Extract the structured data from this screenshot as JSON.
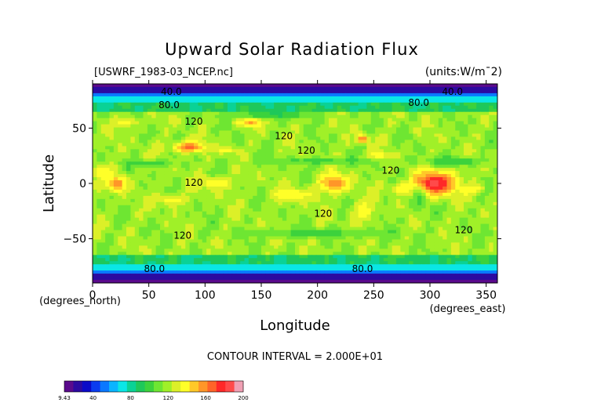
{
  "chart_data": {
    "type": "heatmap",
    "title": "Upward Solar Radiation Flux",
    "file_label": "[USWRF_1983-03_NCEP.nc]",
    "units_label": "(units:W/m¯2)",
    "xlabel": "Longitude",
    "ylabel": "Latitude",
    "x_unit_label": "(degrees_east)",
    "y_unit_label": "(degrees_north)",
    "xlim": [
      0,
      360
    ],
    "ylim": [
      -90,
      90
    ],
    "x_ticks": [
      0,
      50,
      100,
      150,
      200,
      250,
      300,
      350
    ],
    "y_ticks": [
      50,
      0,
      -50
    ],
    "contour_interval_label": "CONTOUR INTERVAL = 2.000E+01",
    "contour_labels": [
      {
        "text": "40.0",
        "lon": 70,
        "lat": 80
      },
      {
        "text": "80.0",
        "lon": 68,
        "lat": 68
      },
      {
        "text": "40.0",
        "lon": 320,
        "lat": 80
      },
      {
        "text": "80.0",
        "lon": 290,
        "lat": 70
      },
      {
        "text": "120",
        "lon": 90,
        "lat": 53
      },
      {
        "text": "120",
        "lon": 170,
        "lat": 40
      },
      {
        "text": "120",
        "lon": 190,
        "lat": 27
      },
      {
        "text": "120",
        "lon": 265,
        "lat": 9
      },
      {
        "text": "120",
        "lon": 90,
        "lat": -2
      },
      {
        "text": "120",
        "lon": 205,
        "lat": -30
      },
      {
        "text": "120",
        "lon": 80,
        "lat": -50
      },
      {
        "text": "120",
        "lon": 330,
        "lat": -45
      },
      {
        "text": "80.0",
        "lon": 55,
        "lat": -80
      },
      {
        "text": "80.0",
        "lon": 240,
        "lat": -80
      }
    ],
    "colorbar": {
      "min": 9.43,
      "max": 200,
      "tick_labels": [
        "9.43",
        "40",
        "80",
        "120",
        "160",
        "200"
      ],
      "tick_values": [
        9.43,
        40,
        80,
        120,
        160,
        200
      ],
      "colors": [
        "#5a0a8c",
        "#2c0aa0",
        "#0a0ac8",
        "#0a3cf0",
        "#0a78ff",
        "#0ab4ff",
        "#0ae6e6",
        "#0ad296",
        "#1ec85a",
        "#3cd23c",
        "#6ee632",
        "#a0f028",
        "#dcf028",
        "#ffff28",
        "#ffc828",
        "#ff9628",
        "#ff6428",
        "#ff2828",
        "#ff4a4a",
        "#f0a0b4"
      ]
    },
    "features": [
      {
        "kind": "hot",
        "lon": 305,
        "lat": 0,
        "rlon": 18,
        "rlat": 11,
        "value": 185
      },
      {
        "kind": "hot",
        "lon": 215,
        "lat": 0,
        "rlon": 14,
        "rlat": 8,
        "value": 160
      },
      {
        "kind": "hot",
        "lon": 22,
        "lat": 0,
        "rlon": 9,
        "rlat": 7,
        "value": 160
      },
      {
        "kind": "hot",
        "lon": 85,
        "lat": 33,
        "rlon": 14,
        "rlat": 5,
        "value": 165
      },
      {
        "kind": "hot",
        "lon": 140,
        "lat": 55,
        "rlon": 10,
        "rlat": 4,
        "value": 155
      },
      {
        "kind": "hot",
        "lon": 240,
        "lat": 40,
        "rlon": 5,
        "rlat": 4,
        "value": 160
      },
      {
        "kind": "warm",
        "lon": 180,
        "lat": -10,
        "rlon": 20,
        "rlat": 6,
        "value": 140
      },
      {
        "kind": "warm",
        "lon": 240,
        "lat": -25,
        "rlon": 10,
        "rlat": 10,
        "value": 140
      },
      {
        "kind": "warm",
        "lon": 275,
        "lat": -5,
        "rlon": 10,
        "rlat": 6,
        "value": 140
      },
      {
        "kind": "warm",
        "lon": 70,
        "lat": -15,
        "rlon": 12,
        "rlat": 5,
        "value": 140
      },
      {
        "kind": "warm",
        "lon": 340,
        "lat": -5,
        "rlon": 8,
        "rlat": 5,
        "value": 140
      },
      {
        "kind": "warm",
        "lon": 10,
        "lat": 10,
        "rlon": 10,
        "rlat": 6,
        "value": 140
      },
      {
        "kind": "warm",
        "lon": 110,
        "lat": 0,
        "rlon": 15,
        "rlat": 6,
        "value": 140
      },
      {
        "kind": "warm",
        "lon": 30,
        "lat": 55,
        "rlon": 10,
        "rlat": 4,
        "value": 140
      },
      {
        "kind": "warm",
        "lon": 255,
        "lat": 25,
        "rlon": 10,
        "rlat": 4,
        "value": 140
      },
      {
        "kind": "warm",
        "lon": 120,
        "lat": 30,
        "rlon": 8,
        "rlat": 3,
        "value": 140
      },
      {
        "kind": "cool",
        "lon": 160,
        "lat": 62,
        "rlon": 35,
        "rlat": 3,
        "value": 90
      },
      {
        "kind": "cool",
        "lon": 200,
        "lat": 20,
        "rlon": 50,
        "rlat": 3,
        "value": 100
      },
      {
        "kind": "cool",
        "lon": 320,
        "lat": 20,
        "rlon": 25,
        "rlat": 4,
        "value": 95
      },
      {
        "kind": "cool",
        "lon": 50,
        "lat": 18,
        "rlon": 20,
        "rlat": 3,
        "value": 100
      },
      {
        "kind": "cool",
        "lon": 290,
        "lat": -15,
        "rlon": 6,
        "rlat": 10,
        "value": 100
      },
      {
        "kind": "cool",
        "lon": 200,
        "lat": -45,
        "rlon": 60,
        "rlat": 4,
        "value": 100
      }
    ]
  }
}
